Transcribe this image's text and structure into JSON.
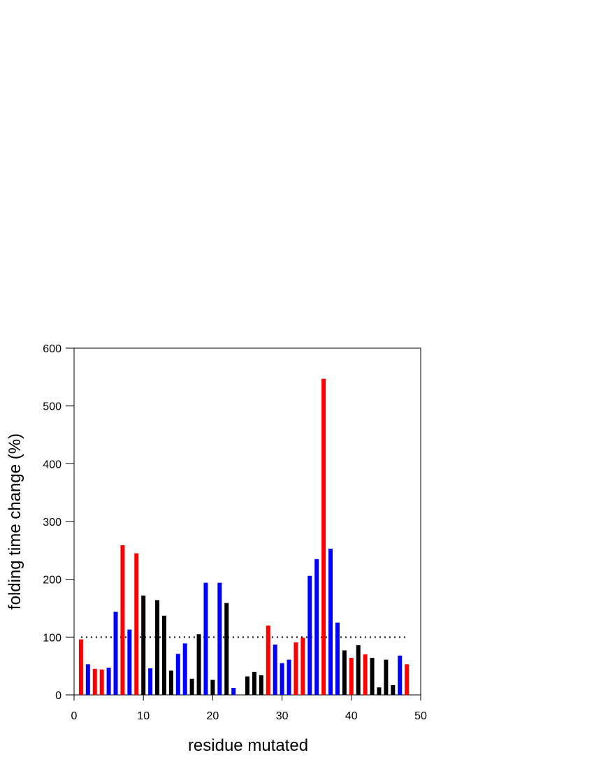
{
  "chart_data": {
    "type": "bar",
    "xlabel": "residue mutated",
    "ylabel": "folding time change (%)",
    "xlim": [
      0,
      50
    ],
    "ylim": [
      0,
      600
    ],
    "xticks": [
      0,
      10,
      20,
      30,
      40,
      50
    ],
    "yticks": [
      0,
      100,
      200,
      300,
      400,
      500,
      600
    ],
    "reference_line": {
      "y": 100,
      "x_start": 1,
      "x_end": 48,
      "style": "dotted",
      "color": "#000000"
    },
    "colors": {
      "red": "#ff0000",
      "blue": "#0000ff",
      "black": "#000000"
    },
    "bars": [
      {
        "x": 1,
        "value": 96,
        "color": "red"
      },
      {
        "x": 2,
        "value": 53,
        "color": "blue"
      },
      {
        "x": 3,
        "value": 45,
        "color": "red"
      },
      {
        "x": 4,
        "value": 44,
        "color": "red"
      },
      {
        "x": 5,
        "value": 47,
        "color": "blue"
      },
      {
        "x": 6,
        "value": 144,
        "color": "blue"
      },
      {
        "x": 7,
        "value": 259,
        "color": "red"
      },
      {
        "x": 8,
        "value": 113,
        "color": "blue"
      },
      {
        "x": 9,
        "value": 245,
        "color": "red"
      },
      {
        "x": 10,
        "value": 172,
        "color": "black"
      },
      {
        "x": 11,
        "value": 46,
        "color": "blue"
      },
      {
        "x": 12,
        "value": 164,
        "color": "black"
      },
      {
        "x": 13,
        "value": 137,
        "color": "black"
      },
      {
        "x": 14,
        "value": 42,
        "color": "black"
      },
      {
        "x": 15,
        "value": 71,
        "color": "blue"
      },
      {
        "x": 16,
        "value": 89,
        "color": "blue"
      },
      {
        "x": 17,
        "value": 28,
        "color": "black"
      },
      {
        "x": 18,
        "value": 105,
        "color": "black"
      },
      {
        "x": 19,
        "value": 194,
        "color": "blue"
      },
      {
        "x": 20,
        "value": 26,
        "color": "black"
      },
      {
        "x": 21,
        "value": 194,
        "color": "blue"
      },
      {
        "x": 22,
        "value": 159,
        "color": "black"
      },
      {
        "x": 23,
        "value": 12,
        "color": "blue"
      },
      {
        "x": 25,
        "value": 32,
        "color": "black"
      },
      {
        "x": 26,
        "value": 40,
        "color": "black"
      },
      {
        "x": 27,
        "value": 34,
        "color": "black"
      },
      {
        "x": 28,
        "value": 120,
        "color": "red"
      },
      {
        "x": 29,
        "value": 87,
        "color": "blue"
      },
      {
        "x": 30,
        "value": 55,
        "color": "blue"
      },
      {
        "x": 31,
        "value": 61,
        "color": "blue"
      },
      {
        "x": 32,
        "value": 91,
        "color": "red"
      },
      {
        "x": 33,
        "value": 99,
        "color": "red"
      },
      {
        "x": 34,
        "value": 206,
        "color": "blue"
      },
      {
        "x": 35,
        "value": 235,
        "color": "blue"
      },
      {
        "x": 36,
        "value": 547,
        "color": "red"
      },
      {
        "x": 37,
        "value": 253,
        "color": "blue"
      },
      {
        "x": 38,
        "value": 125,
        "color": "blue"
      },
      {
        "x": 39,
        "value": 77,
        "color": "black"
      },
      {
        "x": 40,
        "value": 64,
        "color": "red"
      },
      {
        "x": 41,
        "value": 86,
        "color": "black"
      },
      {
        "x": 42,
        "value": 70,
        "color": "red"
      },
      {
        "x": 43,
        "value": 64,
        "color": "black"
      },
      {
        "x": 44,
        "value": 13,
        "color": "black"
      },
      {
        "x": 45,
        "value": 61,
        "color": "black"
      },
      {
        "x": 46,
        "value": 17,
        "color": "black"
      },
      {
        "x": 47,
        "value": 68,
        "color": "blue"
      },
      {
        "x": 48,
        "value": 53,
        "color": "red"
      }
    ]
  }
}
